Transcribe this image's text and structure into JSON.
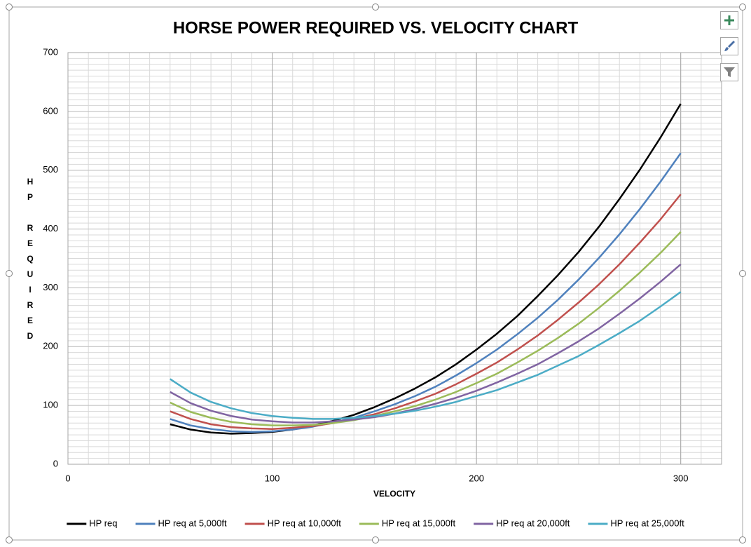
{
  "chart_data": {
    "type": "line",
    "title": "HORSE POWER REQUIRED VS. VELOCITY CHART",
    "x_label": "VELOCITY",
    "y_label": "HP REQUIRED",
    "x": [
      50,
      60,
      70,
      80,
      90,
      100,
      110,
      120,
      130,
      140,
      150,
      160,
      170,
      180,
      190,
      200,
      210,
      220,
      230,
      240,
      250,
      260,
      270,
      280,
      290,
      300
    ],
    "series": [
      {
        "name": "HP req",
        "color": "#000000",
        "values": [
          68,
          59,
          54,
          52,
          53,
          55,
          59,
          66,
          74,
          84,
          97,
          112,
          129,
          148,
          170,
          195,
          222,
          252,
          286,
          322,
          361,
          404,
          451,
          501,
          555,
          613
        ]
      },
      {
        "name": "HP req at 5,000ft",
        "color": "#4f81bd",
        "values": [
          77,
          66,
          60,
          56,
          55,
          56,
          59,
          64,
          71,
          79,
          90,
          102,
          116,
          132,
          151,
          172,
          195,
          221,
          249,
          280,
          314,
          351,
          391,
          434,
          480,
          529
        ]
      },
      {
        "name": "HP req at 10,000ft",
        "color": "#c0504d",
        "values": [
          90,
          77,
          68,
          63,
          61,
          60,
          62,
          65,
          70,
          77,
          85,
          95,
          107,
          120,
          136,
          154,
          173,
          195,
          219,
          246,
          275,
          306,
          340,
          377,
          416,
          459
        ]
      },
      {
        "name": "HP req at 15,000ft",
        "color": "#9bbb59",
        "values": [
          105,
          89,
          79,
          72,
          68,
          66,
          66,
          67,
          70,
          75,
          82,
          90,
          99,
          110,
          123,
          138,
          154,
          173,
          193,
          215,
          239,
          266,
          295,
          326,
          359,
          395
        ]
      },
      {
        "name": "HP req at 20,000ft",
        "color": "#8064a2",
        "values": [
          123,
          104,
          91,
          82,
          76,
          73,
          71,
          71,
          73,
          76,
          80,
          86,
          94,
          103,
          113,
          125,
          139,
          154,
          170,
          189,
          209,
          231,
          256,
          282,
          310,
          340
        ]
      },
      {
        "name": "HP req at 25,000ft",
        "color": "#4bacc6",
        "values": [
          145,
          122,
          106,
          95,
          87,
          82,
          79,
          77,
          77,
          79,
          82,
          86,
          91,
          98,
          106,
          116,
          126,
          139,
          152,
          168,
          184,
          203,
          223,
          244,
          268,
          293
        ]
      }
    ],
    "xlim": [
      0,
      320
    ],
    "xticks": [
      0,
      100,
      200,
      300
    ],
    "ylim": [
      0,
      700
    ],
    "yticks": [
      0,
      100,
      200,
      300,
      400,
      500,
      600,
      700
    ],
    "grid": true,
    "minor_grid": true,
    "legend": "bottom"
  }
}
